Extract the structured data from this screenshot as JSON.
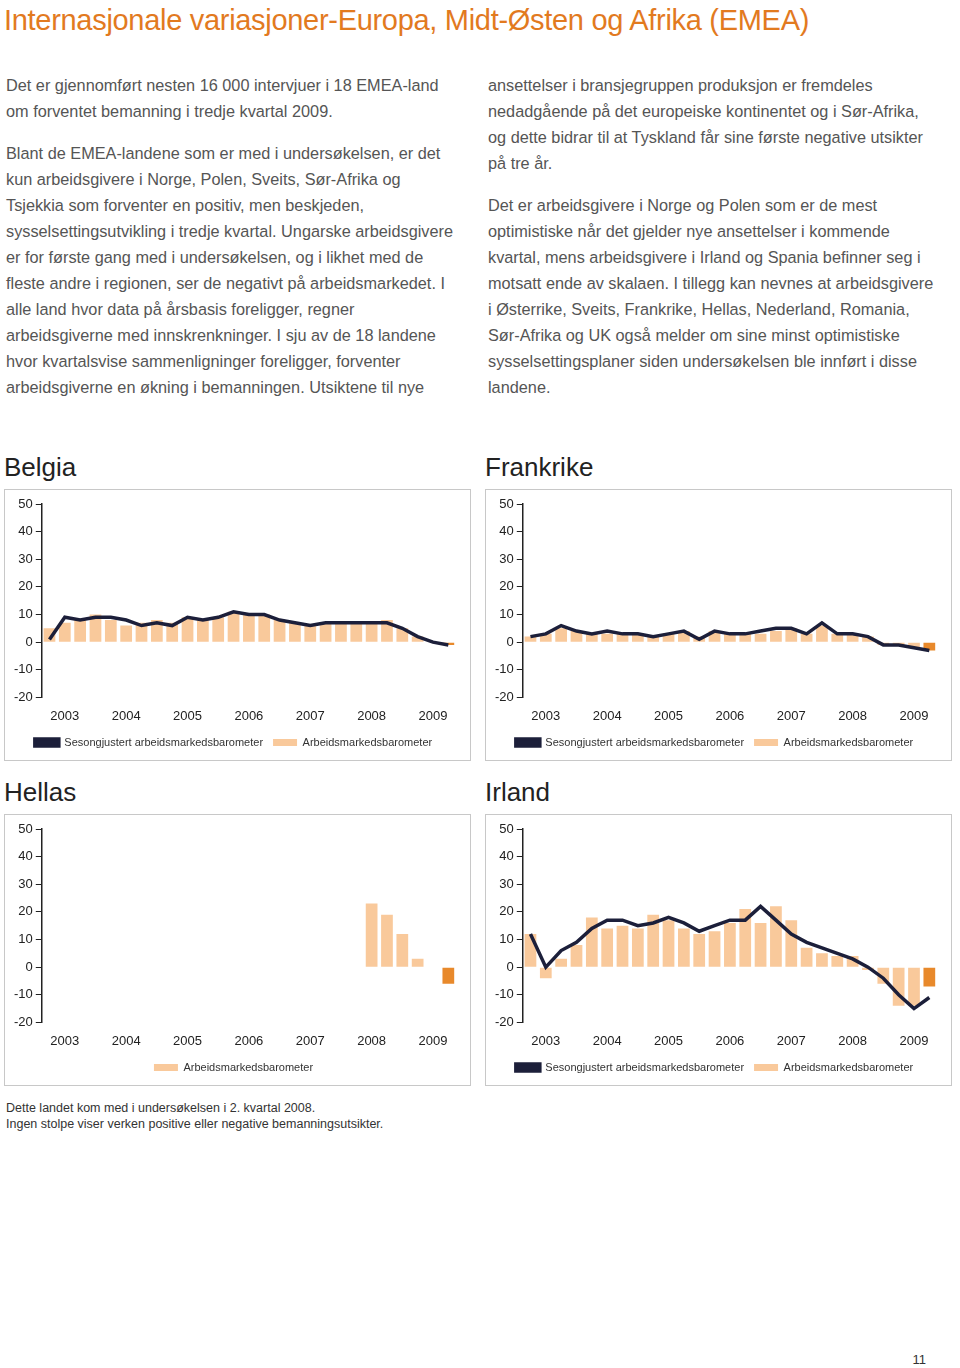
{
  "header": {
    "title": "Internasjonale variasjoner-Europa, Midt-Østen og Afrika (EMEA)"
  },
  "text": {
    "paragraphs": [
      "Det er gjennomført nesten 16 000 intervjuer i 18 EMEA-land om forventet bemanning i tredje kvartal 2009.",
      "Blant de EMEA-landene som er med i undersøkelsen, er det kun arbeidsgivere i Norge, Polen, Sveits, Sør-Afrika og Tsjekkia som forventer en positiv, men beskjeden, sysselsettingsutvikling i tredje kvartal. Ungarske arbeidsgivere er for første gang med i undersøkelsen, og i likhet med de fleste andre i regionen, ser de negativt på arbeidsmarkedet. I alle land hvor data på årsbasis foreligger, regner arbeidsgiverne med innskrenkninger. I sju av de 18 landene hvor kvartalsvise sammenligninger foreligger, forventer arbeidsgiverne en økning i bemanningen. Utsiktene til nye ansettelser i bransjegruppen produksjon er fremdeles nedadgående på det europeiske kontinentet og i Sør-Afrika, og dette bidrar til at Tyskland får sine første negative utsikter på tre år.",
      "Det er arbeidsgivere i Norge og Polen som er de mest optimistiske når det gjelder nye ansettelser i kommende kvartal, mens arbeidsgivere i Irland og Spania befinner seg i motsatt ende av skalaen. I tillegg kan nevnes at arbeidsgivere i Østerrike, Sveits, Frankrike, Hellas, Nederland, Romania, Sør-Afrika og UK også melder om sine minst optimistiske sysselsettingsplaner siden undersøkelsen ble innført i disse landene."
    ]
  },
  "chart_data": [
    {
      "type": "bar",
      "title": "Belgia",
      "categories": [
        null,
        "2003",
        null,
        null,
        null,
        "2004",
        null,
        null,
        null,
        "2005",
        null,
        null,
        null,
        "2006",
        null,
        null,
        null,
        "2007",
        null,
        null,
        null,
        "2008",
        null,
        null,
        null,
        "2009",
        null
      ],
      "series": [
        {
          "name": "Sesongjustert arbeidsmarkedsbarometer",
          "type": "line",
          "color": "#1c1f3a",
          "values": [
            1,
            9,
            8,
            9,
            9,
            8,
            6,
            7,
            6,
            9,
            8,
            9,
            11,
            10,
            10,
            8,
            7,
            6,
            7,
            7,
            7,
            7,
            7,
            5,
            2,
            0,
            -1
          ]
        },
        {
          "name": "Arbeidsmarkedsbarometer",
          "type": "bar",
          "colors": [
            "#f9c99b",
            "#f9c99b",
            "#f9c99b",
            "#f9c99b",
            "#f9c99b",
            "#f9c99b",
            "#f9c99b",
            "#f9c99b",
            "#f9c99b",
            "#f9c99b",
            "#f9c99b",
            "#f9c99b",
            "#f9c99b",
            "#f9c99b",
            "#f9c99b",
            "#f9c99b",
            "#f9c99b",
            "#f9c99b",
            "#f9c99b",
            "#f9c99b",
            "#f9c99b",
            "#f9c99b",
            "#f9c99b",
            "#f9c99b",
            "#f9c99b",
            "#f9c99b",
            "#e8892b"
          ],
          "values": [
            5,
            7,
            8,
            10,
            8,
            6,
            7,
            8,
            7,
            9,
            8,
            9,
            11,
            10,
            10,
            8,
            7,
            6,
            7,
            7,
            7,
            7,
            8,
            5,
            2,
            0,
            -1
          ]
        }
      ],
      "ylim": [
        -20,
        50
      ],
      "yticks": [
        -20,
        -10,
        0,
        10,
        20,
        30,
        40,
        50
      ],
      "grid": false,
      "legend": "bottom"
    },
    {
      "type": "bar",
      "title": "Frankrike",
      "categories": [
        null,
        "2003",
        null,
        null,
        null,
        "2004",
        null,
        null,
        null,
        "2005",
        null,
        null,
        null,
        "2006",
        null,
        null,
        null,
        "2007",
        null,
        null,
        null,
        "2008",
        null,
        null,
        null,
        "2009",
        null
      ],
      "series": [
        {
          "name": "Sesongjustert arbeidsmarkedsbarometer",
          "type": "line",
          "color": "#1c1f3a",
          "values": [
            2,
            3,
            6,
            4,
            3,
            4,
            3,
            3,
            2,
            3,
            4,
            1,
            4,
            3,
            3,
            4,
            5,
            5,
            3,
            7,
            3,
            3,
            2,
            -1,
            -1,
            -2,
            -3
          ]
        },
        {
          "name": "Arbeidsmarkedsbarometer",
          "type": "bar",
          "colors": [
            "#f9c99b",
            "#f9c99b",
            "#f9c99b",
            "#f9c99b",
            "#f9c99b",
            "#f9c99b",
            "#f9c99b",
            "#f9c99b",
            "#f9c99b",
            "#f9c99b",
            "#f9c99b",
            "#f9c99b",
            "#f9c99b",
            "#f9c99b",
            "#f9c99b",
            "#f9c99b",
            "#f9c99b",
            "#f9c99b",
            "#f9c99b",
            "#f9c99b",
            "#f9c99b",
            "#f9c99b",
            "#f9c99b",
            "#f9c99b",
            "#f9c99b",
            "#f9c99b",
            "#e8892b"
          ],
          "values": [
            2,
            3,
            5,
            4,
            3,
            3,
            3,
            3,
            2,
            3,
            4,
            2,
            4,
            3,
            3,
            3,
            4,
            5,
            3,
            6,
            3,
            3,
            2,
            -1,
            -1,
            -2,
            -3
          ]
        }
      ],
      "ylim": [
        -20,
        50
      ],
      "yticks": [
        -20,
        -10,
        0,
        10,
        20,
        30,
        40,
        50
      ],
      "grid": false,
      "legend": "bottom"
    },
    {
      "type": "bar",
      "title": "Hellas",
      "categories": [
        null,
        "2003",
        null,
        null,
        null,
        "2004",
        null,
        null,
        null,
        "2005",
        null,
        null,
        null,
        "2006",
        null,
        null,
        null,
        "2007",
        null,
        null,
        null,
        "2008",
        null,
        null,
        null,
        "2009",
        null
      ],
      "series": [
        {
          "name": "Arbeidsmarkedsbarometer",
          "type": "bar",
          "colors": [
            "#f9c99b",
            "#f9c99b",
            "#f9c99b",
            "#f9c99b",
            "#f9c99b",
            "#f9c99b",
            "#f9c99b",
            "#f9c99b",
            "#f9c99b",
            "#f9c99b",
            "#f9c99b",
            "#f9c99b",
            "#f9c99b",
            "#f9c99b",
            "#f9c99b",
            "#f9c99b",
            "#f9c99b",
            "#f9c99b",
            "#f9c99b",
            "#f9c99b",
            "#f9c99b",
            "#f9c99b",
            "#f9c99b",
            "#f9c99b",
            "#f9c99b",
            "#f9c99b",
            "#e8892b"
          ],
          "values": [
            null,
            null,
            null,
            null,
            null,
            null,
            null,
            null,
            null,
            null,
            null,
            null,
            null,
            null,
            null,
            null,
            null,
            null,
            null,
            null,
            null,
            23,
            19,
            12,
            3,
            0,
            -6
          ]
        }
      ],
      "ylim": [
        -20,
        50
      ],
      "yticks": [
        -20,
        -10,
        0,
        10,
        20,
        30,
        40,
        50
      ],
      "grid": false,
      "legend": "bottom"
    },
    {
      "type": "bar",
      "title": "Irland",
      "categories": [
        null,
        "2003",
        null,
        null,
        null,
        "2004",
        null,
        null,
        null,
        "2005",
        null,
        null,
        null,
        "2006",
        null,
        null,
        null,
        "2007",
        null,
        null,
        null,
        "2008",
        null,
        null,
        null,
        "2009",
        null
      ],
      "series": [
        {
          "name": "Sesongjustert arbeidsmarkedsbarometer",
          "type": "line",
          "color": "#1c1f3a",
          "values": [
            12,
            0,
            6,
            9,
            14,
            17,
            17,
            15,
            16,
            18,
            16,
            13,
            15,
            17,
            17,
            22,
            17,
            12,
            9,
            7,
            5,
            3,
            0,
            -4,
            -10,
            -15,
            -11
          ]
        },
        {
          "name": "Arbeidsmarkedsbarometer",
          "type": "bar",
          "colors": [
            "#f9c99b",
            "#f9c99b",
            "#f9c99b",
            "#f9c99b",
            "#f9c99b",
            "#f9c99b",
            "#f9c99b",
            "#f9c99b",
            "#f9c99b",
            "#f9c99b",
            "#f9c99b",
            "#f9c99b",
            "#f9c99b",
            "#f9c99b",
            "#f9c99b",
            "#f9c99b",
            "#f9c99b",
            "#f9c99b",
            "#f9c99b",
            "#f9c99b",
            "#f9c99b",
            "#f9c99b",
            "#f9c99b",
            "#f9c99b",
            "#f9c99b",
            "#f9c99b",
            "#e8892b"
          ],
          "values": [
            12,
            -4,
            3,
            8,
            18,
            14,
            15,
            14,
            19,
            17,
            14,
            12,
            13,
            16,
            21,
            16,
            22,
            17,
            7,
            5,
            4,
            4,
            -1,
            -6,
            -14,
            -14,
            -7
          ]
        }
      ],
      "ylim": [
        -20,
        50
      ],
      "yticks": [
        -20,
        -10,
        0,
        10,
        20,
        30,
        40,
        50
      ],
      "grid": false,
      "legend": "bottom"
    }
  ],
  "footnotes": [
    "Dette landet kom med i undersøkelsen i 2. kvartal 2008.",
    "Ingen stolpe viser verken positive eller negative bemanningsutsikter."
  ],
  "page_number": 11
}
